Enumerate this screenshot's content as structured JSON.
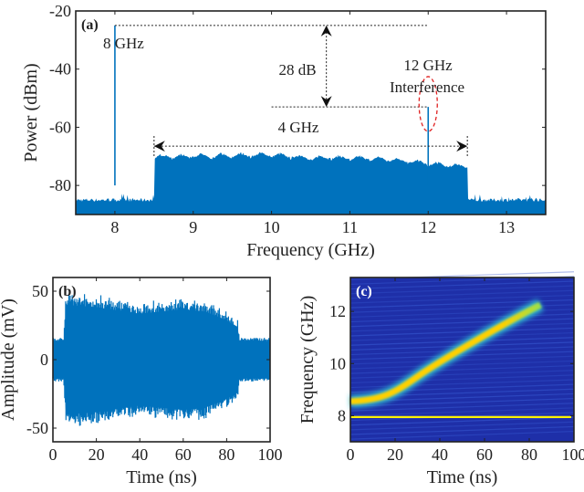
{
  "chart_data": [
    {
      "id": "a",
      "type": "area",
      "panel_label": "(a)",
      "xlabel": "Frequency (GHz)",
      "ylabel": "Power (dBm)",
      "xlim": [
        7.5,
        13.5
      ],
      "ylim": [
        -90,
        -20
      ],
      "xticks": [
        "8",
        "9",
        "10",
        "11",
        "12",
        "13"
      ],
      "xtick_values": [
        8,
        9,
        10,
        11,
        12,
        13
      ],
      "yticks": [
        "-20",
        "-40",
        "-60",
        "-80"
      ],
      "ytick_values": [
        -20,
        -40,
        -60,
        -80
      ],
      "noise_floor_dbm": -85,
      "band": {
        "start_ghz": 8.5,
        "end_ghz": 12.5,
        "levels_x": [
          8.5,
          9,
          9.5,
          10,
          10.5,
          11,
          11.5,
          12,
          12.5
        ],
        "levels_dbm": [
          -69.5,
          -69.5,
          -69.2,
          -69,
          -70,
          -70,
          -70.5,
          -72,
          -73
        ]
      },
      "tones": [
        {
          "freq_ghz": 8,
          "power_dbm": -25
        },
        {
          "freq_ghz": 12,
          "power_dbm": -53
        }
      ],
      "annotations": {
        "tone_label": "8 GHz",
        "delta_label": "28 dB",
        "interference_label_1": "12 GHz",
        "interference_label_2": "Interference",
        "bandwidth_label": "4 GHz"
      },
      "color": "#0072bd"
    },
    {
      "id": "b",
      "type": "line",
      "panel_label": "(b)",
      "xlabel": "Time (ns)",
      "ylabel": "Amplitude (mV)",
      "xlim": [
        0,
        100
      ],
      "ylim": [
        -60,
        60
      ],
      "xticks": [
        "0",
        "20",
        "40",
        "60",
        "80",
        "100"
      ],
      "xtick_values": [
        0,
        20,
        40,
        60,
        80,
        100
      ],
      "yticks": [
        "50",
        "0",
        "-50"
      ],
      "ytick_values": [
        50,
        0,
        -50
      ],
      "envelope_t": [
        0,
        5,
        6,
        20,
        40,
        60,
        70,
        80,
        85,
        86,
        100
      ],
      "envelope_mv": [
        16,
        16,
        50,
        48,
        42,
        46,
        44,
        36,
        30,
        16,
        16
      ],
      "color": "#0072bd"
    },
    {
      "id": "c",
      "type": "heatmap",
      "panel_label": "(c)",
      "xlabel": "Time (ns)",
      "ylabel": "Frequency (GHz)",
      "xlim": [
        0,
        100
      ],
      "ylim": [
        7,
        13.3
      ],
      "xticks": [
        "0",
        "20",
        "40",
        "60",
        "80",
        "100"
      ],
      "xtick_values": [
        0,
        20,
        40,
        60,
        80,
        100
      ],
      "yticks": [
        "8",
        "10",
        "12"
      ],
      "ytick_values": [
        8,
        10,
        12
      ],
      "chirp": {
        "t_start_ns": 0,
        "f_start_ghz": 8.55,
        "t_end_ns": 85,
        "f_end_ghz": 12.25
      },
      "tone_ghz": 7.95
    }
  ]
}
